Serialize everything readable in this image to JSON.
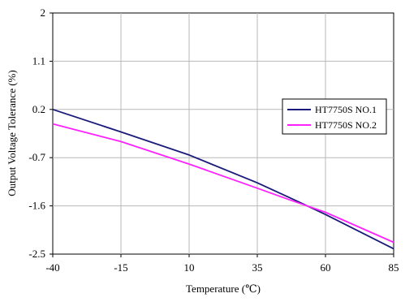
{
  "chart_data": {
    "type": "line",
    "title": "",
    "xlabel": "Temperature (℃)",
    "ylabel": "Output Voltage Tolerance (%)",
    "xlim": [
      -40,
      85
    ],
    "ylim": [
      -2.5,
      2
    ],
    "x_ticks": [
      -40,
      -15,
      10,
      35,
      60,
      85
    ],
    "y_ticks": [
      -2.5,
      -1.6,
      -0.7,
      0.2,
      1.1,
      2
    ],
    "x_tick_labels": [
      "-40",
      "-15",
      "10",
      "35",
      "60",
      "85"
    ],
    "y_tick_labels": [
      "-2.5",
      "-1.6",
      "-0.7",
      "0.2",
      "1.1",
      "2"
    ],
    "grid": true,
    "legend_position": "right",
    "series": [
      {
        "name": "HT7750S NO.1",
        "color": "#1a1a7a",
        "x": [
          -40,
          -15,
          10,
          35,
          47,
          60,
          85
        ],
        "y": [
          0.2,
          -0.22,
          -0.65,
          -1.17,
          -1.45,
          -1.76,
          -2.4
        ]
      },
      {
        "name": "HT7750S NO.2",
        "color": "#ff22ff",
        "x": [
          -40,
          -15,
          10,
          35,
          47,
          60,
          85
        ],
        "y": [
          -0.07,
          -0.4,
          -0.82,
          -1.27,
          -1.49,
          -1.72,
          -2.28
        ]
      }
    ]
  }
}
